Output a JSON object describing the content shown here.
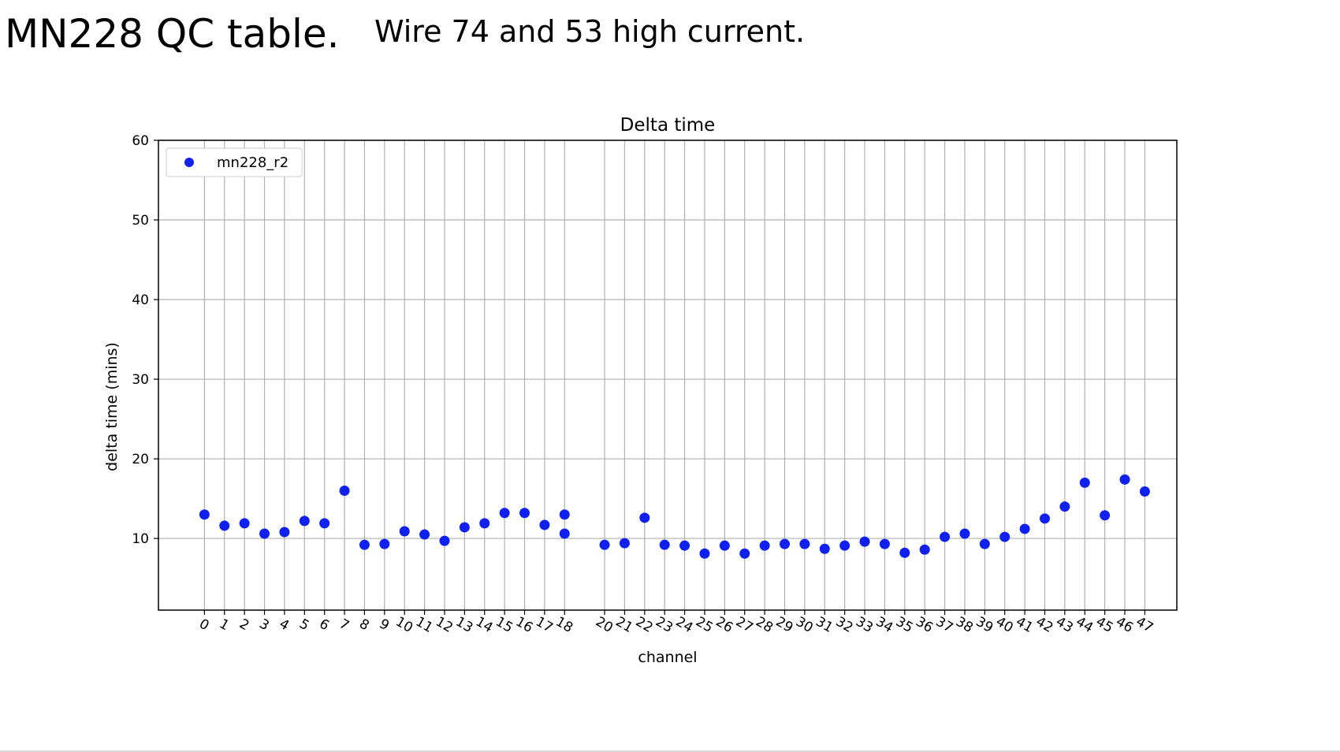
{
  "slide": {
    "title": "MN228 QC table.",
    "note": "Wire 74 and 53 high current."
  },
  "colors": {
    "marker": "#1020ee",
    "grid": "#b0b0b0",
    "axis": "#000000"
  },
  "chart_data": {
    "type": "scatter",
    "title": "Delta time",
    "xlabel": "channel",
    "ylabel": "delta time (mins)",
    "ylim": [
      1,
      60
    ],
    "yticks": [
      10,
      20,
      30,
      40,
      50,
      60
    ],
    "grid": true,
    "legend_position": "top-left",
    "x": [
      0,
      1,
      2,
      3,
      4,
      5,
      6,
      7,
      8,
      9,
      10,
      11,
      12,
      13,
      14,
      15,
      16,
      17,
      18,
      18,
      20,
      21,
      22,
      23,
      24,
      25,
      26,
      27,
      28,
      29,
      30,
      31,
      32,
      33,
      34,
      35,
      36,
      37,
      38,
      39,
      40,
      41,
      42,
      43,
      44,
      45,
      46,
      47
    ],
    "xticks": [
      0,
      1,
      2,
      3,
      4,
      5,
      6,
      7,
      8,
      9,
      10,
      11,
      12,
      13,
      14,
      15,
      16,
      17,
      18,
      20,
      21,
      22,
      23,
      24,
      25,
      26,
      27,
      28,
      29,
      30,
      31,
      32,
      33,
      34,
      35,
      36,
      37,
      38,
      39,
      40,
      41,
      42,
      43,
      44,
      45,
      46,
      47
    ],
    "series": [
      {
        "name": "mn228_r2",
        "color": "#1020ee",
        "y": [
          13.0,
          11.6,
          11.9,
          10.6,
          10.8,
          12.2,
          11.9,
          16.0,
          9.2,
          9.3,
          10.9,
          10.5,
          9.7,
          11.4,
          11.9,
          13.2,
          13.2,
          11.7,
          13.0,
          10.6,
          9.2,
          9.4,
          12.6,
          9.2,
          9.1,
          8.1,
          9.1,
          8.1,
          9.1,
          9.3,
          9.3,
          8.7,
          9.1,
          9.6,
          9.3,
          8.2,
          8.6,
          10.2,
          10.6,
          9.3,
          10.2,
          11.2,
          12.5,
          14.0,
          17.0,
          12.9,
          17.4,
          15.9
        ]
      }
    ]
  }
}
